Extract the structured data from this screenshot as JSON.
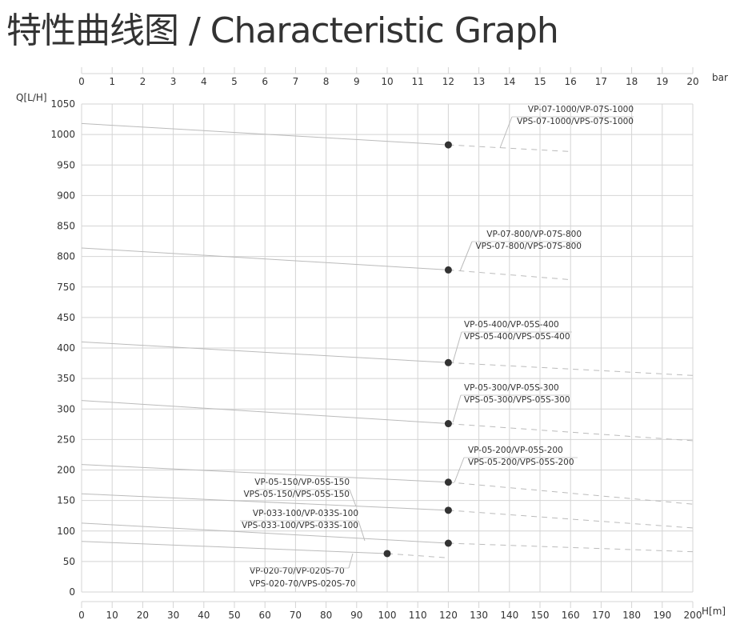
{
  "title": "特性曲线图 / Characteristic Graph",
  "chart_data": {
    "type": "line",
    "title": "特性曲线图 / Characteristic Graph",
    "xlabel": "H[m]",
    "x2label": "bar",
    "ylabel": "Q[L/H]",
    "xlim": [
      0,
      200
    ],
    "x2lim": [
      0,
      20
    ],
    "x_ticks": [
      0,
      10,
      20,
      30,
      40,
      50,
      60,
      70,
      80,
      90,
      100,
      110,
      120,
      130,
      140,
      150,
      160,
      170,
      180,
      190,
      200
    ],
    "x2_ticks": [
      0,
      1,
      2,
      3,
      4,
      5,
      6,
      7,
      8,
      9,
      10,
      11,
      12,
      13,
      14,
      15,
      16,
      17,
      18,
      19,
      20
    ],
    "y_ticks": [
      1050,
      1000,
      950,
      900,
      850,
      800,
      750,
      450,
      400,
      350,
      300,
      250,
      200,
      150,
      100,
      50,
      0
    ],
    "y_axis_break": [
      450,
      750
    ],
    "grid": true,
    "series": [
      {
        "name": [
          "VP-07-1000/VP-07S-1000",
          "VPS-07-1000/VPS-07S-1000"
        ],
        "x": [
          0,
          120,
          160
        ],
        "y": [
          1018,
          983,
          972
        ],
        "rated_point": [
          120,
          983
        ]
      },
      {
        "name": [
          "VP-07-800/VP-07S-800",
          "VPS-07-800/VPS-07S-800"
        ],
        "x": [
          0,
          120,
          160
        ],
        "y": [
          814,
          778,
          762
        ],
        "rated_point": [
          120,
          778
        ]
      },
      {
        "name": [
          "VP-05-400/VP-05S-400",
          "VPS-05-400/VPS-05S-400"
        ],
        "x": [
          0,
          120,
          200
        ],
        "y": [
          410,
          376,
          355
        ],
        "rated_point": [
          120,
          376
        ]
      },
      {
        "name": [
          "VP-05-300/VP-05S-300",
          "VPS-05-300/VPS-05S-300"
        ],
        "x": [
          0,
          120,
          200
        ],
        "y": [
          314,
          276,
          248
        ],
        "rated_point": [
          120,
          276
        ]
      },
      {
        "name": [
          "VP-05-200/VP-05S-200",
          "VPS-05-200/VPS-05S-200"
        ],
        "x": [
          0,
          120,
          200
        ],
        "y": [
          209,
          180,
          144
        ],
        "rated_point": [
          120,
          180
        ]
      },
      {
        "name": [
          "VP-05-150/VP-05S-150",
          "VPS-05-150/VPS-05S-150"
        ],
        "x": [
          0,
          120,
          200
        ],
        "y": [
          161,
          134,
          105
        ],
        "rated_point": [
          120,
          134
        ]
      },
      {
        "name": [
          "VP-033-100/VP-033S-100",
          "VPS-033-100/VPS-033S-100"
        ],
        "x": [
          0,
          120,
          200
        ],
        "y": [
          113,
          80,
          66
        ],
        "rated_point": [
          120,
          80
        ]
      },
      {
        "name": [
          "VP-020-70/VP-020S-70",
          "VPS-020-70/VPS-020S-70"
        ],
        "x": [
          0,
          100,
          120
        ],
        "y": [
          83,
          63,
          56
        ],
        "rated_point": [
          100,
          63
        ]
      }
    ]
  }
}
